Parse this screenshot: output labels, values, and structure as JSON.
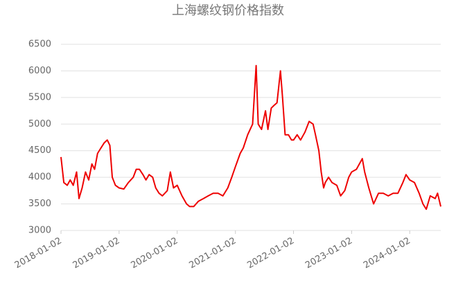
{
  "chart_data": {
    "type": "line",
    "title": "上海螺纹钢价格指数",
    "x": [
      "2018-01-02",
      "2018-01-20",
      "2018-02-10",
      "2018-03-01",
      "2018-03-20",
      "2018-04-10",
      "2018-04-25",
      "2018-05-15",
      "2018-06-05",
      "2018-06-25",
      "2018-07-15",
      "2018-08-01",
      "2018-08-20",
      "2018-09-10",
      "2018-10-01",
      "2018-10-20",
      "2018-11-05",
      "2018-11-20",
      "2018-12-10",
      "2019-01-02",
      "2019-02-01",
      "2019-03-01",
      "2019-04-01",
      "2019-04-20",
      "2019-05-10",
      "2019-06-01",
      "2019-06-20",
      "2019-07-10",
      "2019-08-01",
      "2019-08-20",
      "2019-09-10",
      "2019-10-01",
      "2019-11-01",
      "2019-11-20",
      "2019-12-10",
      "2020-01-02",
      "2020-02-01",
      "2020-03-01",
      "2020-03-20",
      "2020-04-15",
      "2020-05-15",
      "2020-06-15",
      "2020-07-15",
      "2020-08-15",
      "2020-09-15",
      "2020-10-15",
      "2020-11-15",
      "2020-12-10",
      "2021-01-02",
      "2021-02-01",
      "2021-02-20",
      "2021-03-20",
      "2021-04-20",
      "2021-05-12",
      "2021-05-25",
      "2021-06-15",
      "2021-07-10",
      "2021-07-25",
      "2021-08-15",
      "2021-09-01",
      "2021-09-20",
      "2021-10-12",
      "2021-10-25",
      "2021-11-10",
      "2021-12-01",
      "2021-12-20",
      "2022-01-02",
      "2022-01-25",
      "2022-02-15",
      "2022-03-15",
      "2022-04-10",
      "2022-05-05",
      "2022-05-20",
      "2022-06-10",
      "2022-06-25",
      "2022-07-10",
      "2022-07-20",
      "2022-08-10",
      "2022-09-01",
      "2022-10-01",
      "2022-10-25",
      "2022-11-20",
      "2022-12-15",
      "2023-01-02",
      "2023-02-01",
      "2023-03-10",
      "2023-03-25",
      "2023-04-20",
      "2023-05-20",
      "2023-06-20",
      "2023-07-20",
      "2023-08-20",
      "2023-09-20",
      "2023-10-20",
      "2023-11-20",
      "2023-12-10",
      "2024-01-02",
      "2024-02-01",
      "2024-03-01",
      "2024-03-25",
      "2024-04-15",
      "2024-05-10",
      "2024-06-10",
      "2024-06-25",
      "2024-07-15"
    ],
    "series": [
      {
        "name": "上海螺纹钢价格指数",
        "color": "#ee0000",
        "values": [
          4380,
          3900,
          3850,
          3950,
          3850,
          4100,
          3600,
          3800,
          4100,
          3950,
          4250,
          4150,
          4450,
          4550,
          4650,
          4700,
          4600,
          4000,
          3850,
          3800,
          3780,
          3900,
          4000,
          4150,
          4150,
          4050,
          3950,
          4050,
          4000,
          3800,
          3700,
          3650,
          3750,
          4100,
          3800,
          3850,
          3650,
          3500,
          3450,
          3450,
          3550,
          3600,
          3650,
          3700,
          3700,
          3650,
          3800,
          4000,
          4200,
          4450,
          4550,
          4800,
          5000,
          6100,
          5000,
          4900,
          5250,
          4900,
          5300,
          5350,
          5400,
          6000,
          5500,
          4800,
          4800,
          4700,
          4700,
          4800,
          4700,
          4850,
          5050,
          5000,
          4800,
          4500,
          4100,
          3800,
          3900,
          4000,
          3900,
          3850,
          3650,
          3750,
          4000,
          4100,
          4150,
          4350,
          4100,
          3800,
          3500,
          3700,
          3700,
          3650,
          3700,
          3700,
          3900,
          4050,
          3950,
          3900,
          3700,
          3500,
          3400,
          3650,
          3600,
          3700,
          3450
        ]
      }
    ],
    "xlim": [
      "2018-01-02",
      "2024-07-15"
    ],
    "xticks": [
      "2018-01-02",
      "2019-01-02",
      "2020-01-02",
      "2021-01-02",
      "2022-01-02",
      "2023-01-02",
      "2024-01-02"
    ],
    "ylim": [
      3000,
      6500
    ],
    "yticks": [
      3000,
      3500,
      4000,
      4500,
      5000,
      5500,
      6000,
      6500
    ],
    "grid": true
  }
}
